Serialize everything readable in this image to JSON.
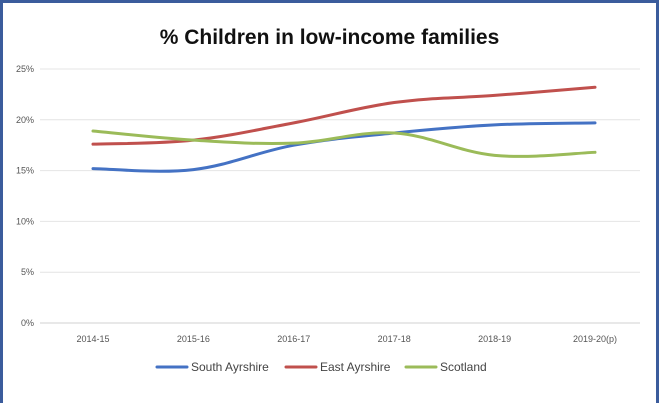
{
  "chart_data": {
    "type": "line",
    "title": "% Children in low-income families",
    "xlabel": "",
    "ylabel": "",
    "categories": [
      "2014-15",
      "2015-16",
      "2016-17",
      "2017-18",
      "2018-19",
      "2019-20(p)"
    ],
    "y_ticks": [
      "0%",
      "5%",
      "10%",
      "15%",
      "20%",
      "25%"
    ],
    "ylim": [
      0,
      25
    ],
    "grid": true,
    "legend_position": "bottom",
    "series": [
      {
        "name": "South Ayrshire",
        "color": "#4472c4",
        "values": [
          15.2,
          15.1,
          17.5,
          18.7,
          19.5,
          19.7
        ]
      },
      {
        "name": "East Ayrshire",
        "color": "#c0504d",
        "values": [
          17.6,
          18.0,
          19.7,
          21.7,
          22.4,
          23.2
        ]
      },
      {
        "name": "Scotland",
        "color": "#9bbb59",
        "values": [
          18.9,
          18.0,
          17.7,
          18.7,
          16.5,
          16.8
        ]
      }
    ]
  }
}
